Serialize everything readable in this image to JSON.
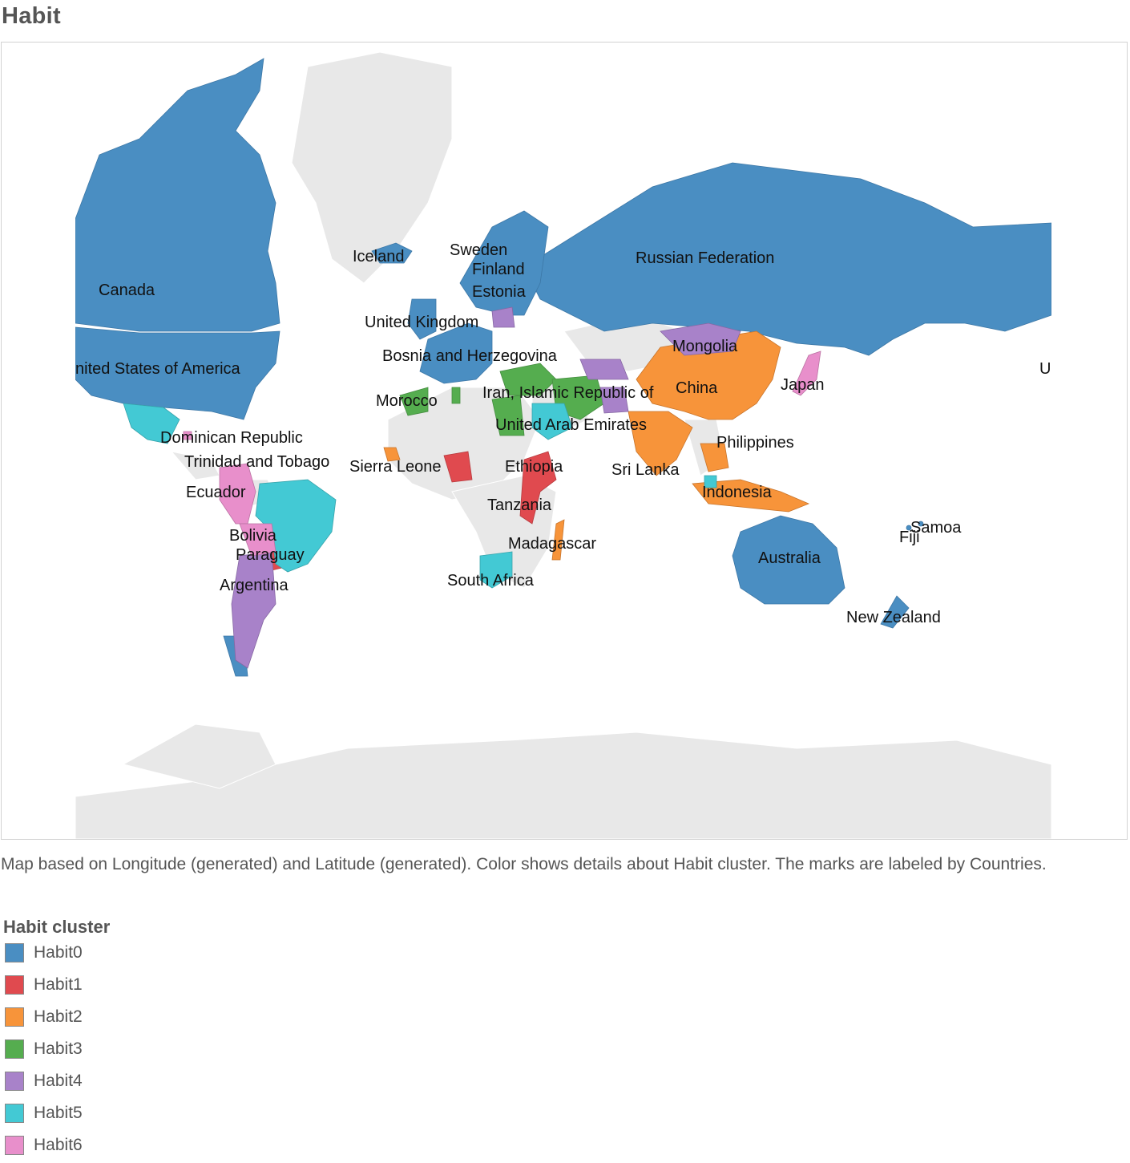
{
  "title": "Habit",
  "colors": {
    "Habit0": "#4a8ec2",
    "Habit1": "#e04a4f",
    "Habit2": "#f7943a",
    "Habit3": "#55ad4f",
    "Habit4": "#a882c9",
    "Habit5": "#43c9d4",
    "Habit6": "#e88fcb",
    "background_land": "#e8e8e8"
  },
  "map": {
    "labels": [
      {
        "text": "Canada",
        "cluster": "Habit0"
      },
      {
        "text": "nited States of America",
        "cluster": "Habit0"
      },
      {
        "text": "Iceland",
        "cluster": "Habit0"
      },
      {
        "text": "Sweden",
        "cluster": "Habit0"
      },
      {
        "text": "Finland",
        "cluster": "Habit0"
      },
      {
        "text": "Estonia",
        "cluster": "Habit4"
      },
      {
        "text": "United Kingdom",
        "cluster": "Habit0"
      },
      {
        "text": "Bosnia and Herzegovina",
        "cluster": "Habit3"
      },
      {
        "text": "Russian Federation",
        "cluster": "Habit0"
      },
      {
        "text": "Mongolia",
        "cluster": "Habit4"
      },
      {
        "text": "China",
        "cluster": "Habit2"
      },
      {
        "text": "Japan",
        "cluster": "Habit6"
      },
      {
        "text": "U",
        "cluster": "Habit0"
      },
      {
        "text": "Morocco",
        "cluster": "Habit3"
      },
      {
        "text": "Iran, Islamic Republic of",
        "cluster": "Habit3"
      },
      {
        "text": "United Arab Emirates",
        "cluster": "Habit5"
      },
      {
        "text": "Dominican Republic",
        "cluster": "Habit6"
      },
      {
        "text": "Trinidad and Tobago",
        "cluster": "Habit6"
      },
      {
        "text": "Sierra Leone",
        "cluster": "Habit2"
      },
      {
        "text": "Ethiopia",
        "cluster": "Habit1"
      },
      {
        "text": "Sri Lanka",
        "cluster": "Habit2"
      },
      {
        "text": "Philippines",
        "cluster": "Habit2"
      },
      {
        "text": "Ecuador",
        "cluster": "Habit6"
      },
      {
        "text": "Indonesia",
        "cluster": "Habit2"
      },
      {
        "text": "Tanzania",
        "cluster": "Habit1"
      },
      {
        "text": "Bolivia",
        "cluster": "Habit6"
      },
      {
        "text": "Paraguay",
        "cluster": "Habit1"
      },
      {
        "text": "Madagascar",
        "cluster": "Habit2"
      },
      {
        "text": "Samoa",
        "cluster": "Habit0"
      },
      {
        "text": "Fiji",
        "cluster": "Habit0"
      },
      {
        "text": "Australia",
        "cluster": "Habit0"
      },
      {
        "text": "Argentina",
        "cluster": "Habit4"
      },
      {
        "text": "South Africa",
        "cluster": "Habit5"
      },
      {
        "text": "New Zealand",
        "cluster": "Habit0"
      }
    ]
  },
  "caption": "Map based on Longitude (generated) and Latitude (generated).  Color shows details about Habit cluster.  The marks are labeled by Countries.",
  "legend": {
    "title": "Habit cluster",
    "items": [
      {
        "label": "Habit0",
        "color": "#4a8ec2"
      },
      {
        "label": "Habit1",
        "color": "#e04a4f"
      },
      {
        "label": "Habit2",
        "color": "#f7943a"
      },
      {
        "label": "Habit3",
        "color": "#55ad4f"
      },
      {
        "label": "Habit4",
        "color": "#a882c9"
      },
      {
        "label": "Habit5",
        "color": "#43c9d4"
      },
      {
        "label": "Habit6",
        "color": "#e88fcb"
      }
    ]
  }
}
